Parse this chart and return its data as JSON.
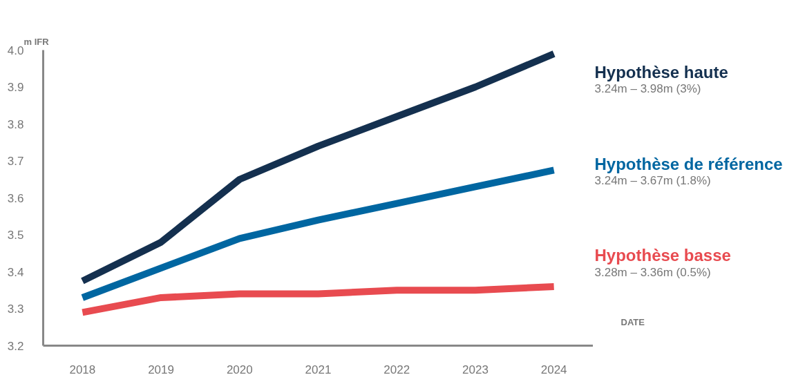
{
  "chart_data": {
    "type": "line",
    "ylabel": "m IFR",
    "xlabel": "DATE",
    "x": [
      2018,
      2019,
      2020,
      2021,
      2022,
      2023,
      2024
    ],
    "series": [
      {
        "name": "Hypothèse haute",
        "color": "#14304f",
        "values": [
          3.375,
          3.48,
          3.65,
          3.74,
          3.82,
          3.9,
          3.99
        ]
      },
      {
        "name": "Hypothèse de référence",
        "color": "#0066a1",
        "values": [
          3.33,
          3.41,
          3.49,
          3.54,
          3.585,
          3.63,
          3.675
        ]
      },
      {
        "name": "Hypothèse basse",
        "color": "#e84b50",
        "values": [
          3.29,
          3.33,
          3.34,
          3.34,
          3.35,
          3.35,
          3.36
        ]
      }
    ],
    "annotations": [
      "3.24m – 3.98m (3%)",
      "3.24m – 3.67m (1.8%)",
      "3.28m – 3.36m (0.5%)"
    ],
    "xlim": [
      2017.5,
      2024.5
    ],
    "ylim": [
      3.2,
      4.0
    ],
    "xticks": [
      2018,
      2019,
      2020,
      2021,
      2022,
      2023,
      2024
    ],
    "yticks": [
      3.2,
      3.3,
      3.4,
      3.5,
      3.6,
      3.7,
      3.8,
      3.9,
      {
        "value": 4.0,
        "label": "4.0"
      }
    ],
    "grid": false,
    "marker": "none",
    "line_style": "solid"
  }
}
